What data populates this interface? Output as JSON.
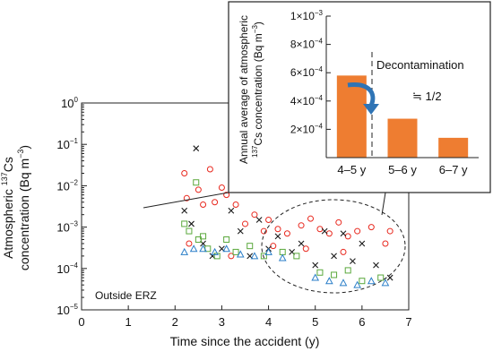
{
  "chart_data": [
    {
      "type": "scatter",
      "title": "",
      "xlabel": "Time since the accident (y)",
      "ylabel": {
        "line1_pre": "Atmospheric ",
        "line1_sup": "137",
        "line1_post": "Cs",
        "line2_pre": "concentration (Bq m",
        "line2_sup": "−3",
        "line2_post": ")"
      },
      "xlim": [
        0,
        7
      ],
      "ylim_log10": [
        -5,
        0
      ],
      "scale": "log",
      "xticks": [
        0,
        1,
        2,
        3,
        4,
        5,
        6,
        7
      ],
      "xtick_labels": [
        "0",
        "1",
        "2",
        "3",
        "4",
        "5",
        "6",
        "7"
      ],
      "yticks": [
        {
          "exp": 0,
          "base": "10",
          "sup": "0"
        },
        {
          "exp": -1,
          "base": "10",
          "sup": "−1"
        },
        {
          "exp": -2,
          "base": "10",
          "sup": "−2"
        },
        {
          "exp": -3,
          "base": "10",
          "sup": "−3"
        },
        {
          "exp": -4,
          "base": "10",
          "sup": "−4"
        },
        {
          "exp": -5,
          "base": "10",
          "sup": "−5"
        }
      ],
      "annotation": "Outside ERZ",
      "grid": false,
      "series": [
        {
          "marker": "circle-open",
          "color": "#e8281e",
          "points": [
            [
              2.2,
              0.02
            ],
            [
              2.25,
              0.005
            ],
            [
              2.5,
              0.008
            ],
            [
              2.6,
              0.0035
            ],
            [
              2.75,
              0.025
            ],
            [
              2.85,
              0.004
            ],
            [
              3.0,
              0.009
            ],
            [
              3.1,
              0.006
            ],
            [
              3.3,
              0.0035
            ],
            [
              3.5,
              0.0012
            ],
            [
              3.7,
              0.002
            ],
            [
              3.9,
              0.0008
            ],
            [
              4.0,
              0.0015
            ],
            [
              4.2,
              0.0009
            ],
            [
              4.4,
              0.0007
            ],
            [
              4.7,
              0.0011
            ],
            [
              4.9,
              0.0016
            ],
            [
              5.1,
              0.0009
            ],
            [
              5.3,
              0.0007
            ],
            [
              5.5,
              0.0013
            ],
            [
              5.7,
              0.0006
            ],
            [
              5.9,
              0.0008
            ],
            [
              6.2,
              0.001
            ],
            [
              6.5,
              0.0004
            ],
            [
              6.6,
              0.0008
            ],
            [
              2.3,
              0.0004
            ],
            [
              3.2,
              0.0002
            ],
            [
              4.1,
              0.00035
            ],
            [
              4.8,
              0.0003
            ],
            [
              5.6,
              0.00025
            ]
          ]
        },
        {
          "marker": "x",
          "color": "#1a1a1a",
          "points": [
            [
              2.2,
              0.0025
            ],
            [
              2.35,
              0.0012
            ],
            [
              2.45,
              0.08
            ],
            [
              2.6,
              0.0004
            ],
            [
              2.8,
              0.0002
            ],
            [
              3.0,
              0.0003
            ],
            [
              3.2,
              0.0025
            ],
            [
              3.4,
              0.0008
            ],
            [
              3.6,
              0.0002
            ],
            [
              3.8,
              0.0015
            ],
            [
              4.0,
              0.0003
            ],
            [
              4.2,
              0.0006
            ],
            [
              4.5,
              0.00025
            ],
            [
              4.7,
              0.0004
            ],
            [
              5.0,
              0.00012
            ],
            [
              5.2,
              0.0008
            ],
            [
              5.4,
              0.0002
            ],
            [
              5.6,
              0.0007
            ],
            [
              5.8,
              0.00015
            ],
            [
              6.0,
              0.0004
            ],
            [
              6.3,
              0.00012
            ],
            [
              6.6,
              6e-05
            ]
          ]
        },
        {
          "marker": "square-open",
          "color": "#5aa83c",
          "points": [
            [
              2.2,
              0.0012
            ],
            [
              2.3,
              0.0008
            ],
            [
              2.5,
              0.0005
            ],
            [
              2.7,
              0.0003
            ],
            [
              2.9,
              0.0002
            ],
            [
              3.1,
              0.0005
            ],
            [
              3.3,
              0.00025
            ],
            [
              3.6,
              0.00035
            ],
            [
              3.9,
              0.0002
            ],
            [
              4.3,
              0.00025
            ],
            [
              4.6,
              0.0002
            ],
            [
              5.1,
              8e-05
            ],
            [
              5.4,
              7e-05
            ],
            [
              5.7,
              9e-05
            ],
            [
              6.0,
              5e-05
            ],
            [
              6.4,
              6e-05
            ],
            [
              2.45,
              0.012
            ],
            [
              2.6,
              0.0006
            ]
          ]
        },
        {
          "marker": "triangle-open",
          "color": "#2a7ec8",
          "points": [
            [
              2.2,
              0.00025
            ],
            [
              2.4,
              0.0003
            ],
            [
              2.6,
              0.0003
            ],
            [
              2.85,
              0.00025
            ],
            [
              3.1,
              0.0003
            ],
            [
              3.4,
              0.00022
            ],
            [
              3.7,
              0.0002
            ],
            [
              4.0,
              0.00025
            ],
            [
              4.3,
              0.00018
            ],
            [
              5.0,
              6e-05
            ],
            [
              5.3,
              5e-05
            ],
            [
              5.6,
              4.5e-05
            ],
            [
              5.9,
              4e-05
            ],
            [
              6.2,
              5e-05
            ],
            [
              6.5,
              4.5e-05
            ]
          ]
        }
      ]
    },
    {
      "type": "bar",
      "title": "",
      "ylabel": {
        "line1": "Annual average of atmospheric",
        "line2_pre": "",
        "line2_sup": "137",
        "line2_post": "Cs concentration (Bq m",
        "line2_sup2": "−3",
        "line2_end": ")"
      },
      "ylim": [
        0,
        0.001
      ],
      "yticks": [
        {
          "value": 0.0002,
          "mant": "2×10",
          "sup": "−4"
        },
        {
          "value": 0.0004,
          "mant": "4×10",
          "sup": "−4"
        },
        {
          "value": 0.0006,
          "mant": "6×10",
          "sup": "−4"
        },
        {
          "value": 0.0008,
          "mant": "8×10",
          "sup": "−4"
        },
        {
          "value": 0.001,
          "mant": "1×10",
          "sup": "−3"
        }
      ],
      "categories": [
        "4–5 y",
        "5–6 y",
        "6–7 y"
      ],
      "values": [
        0.00058,
        0.000275,
        0.00014
      ],
      "bar_color": "#ee7d31",
      "annotation": "Decontamination",
      "ratio_label": "≒ 1/2",
      "arrow_color": "#2f74b5"
    }
  ]
}
